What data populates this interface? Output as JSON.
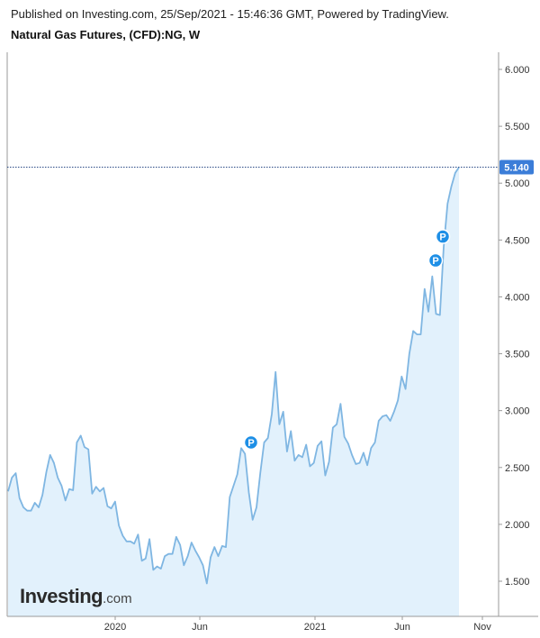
{
  "header": {
    "published": "Published on Investing.com, 25/Sep/2021 - 15:46:36 GMT, Powered by TradingView.",
    "title": "Natural Gas Futures, (CFD):NG, W"
  },
  "logo": {
    "brand": "Investing",
    "suffix": ".com"
  },
  "chart_data": {
    "type": "area",
    "title": "Natural Gas Futures, (CFD):NG, W",
    "xlabel": "",
    "ylabel": "",
    "ylim": [
      1.2,
      6.1
    ],
    "y_axis_position": "right",
    "y_ticks": [
      "6.000",
      "5.500",
      "5.000",
      "4.500",
      "4.000",
      "3.500",
      "3.000",
      "2.500",
      "2.000",
      "1.500"
    ],
    "x_ticks": [
      "2020",
      "Jun",
      "2021",
      "Jun",
      "Nov"
    ],
    "last_value_label": "5.140",
    "grid": false,
    "legend": "none",
    "colors": {
      "line": "#7fb6e2",
      "fill": "#e2f1fc",
      "badge": "#3b7dd8",
      "marker": "#1e8fe6",
      "marker_ring": "#ffffff"
    },
    "markers": [
      {
        "label": "P",
        "value": 2.72
      },
      {
        "label": "P",
        "value": 4.32
      },
      {
        "label": "P",
        "value": 4.53
      }
    ],
    "series": [
      {
        "values": [
          2.29,
          2.41,
          2.45,
          2.23,
          2.15,
          2.12,
          2.12,
          2.19,
          2.15,
          2.26,
          2.46,
          2.61,
          2.54,
          2.41,
          2.34,
          2.21,
          2.31,
          2.3,
          2.72,
          2.78,
          2.68,
          2.66,
          2.27,
          2.33,
          2.29,
          2.32,
          2.16,
          2.14,
          2.2,
          1.99,
          1.9,
          1.85,
          1.85,
          1.83,
          1.91,
          1.68,
          1.7,
          1.87,
          1.6,
          1.63,
          1.61,
          1.72,
          1.74,
          1.74,
          1.89,
          1.82,
          1.64,
          1.72,
          1.84,
          1.77,
          1.71,
          1.64,
          1.48,
          1.71,
          1.8,
          1.72,
          1.81,
          1.8,
          2.24,
          2.34,
          2.44,
          2.67,
          2.62,
          2.28,
          2.04,
          2.15,
          2.45,
          2.72,
          2.76,
          2.97,
          3.34,
          2.88,
          2.99,
          2.64,
          2.82,
          2.56,
          2.61,
          2.59,
          2.7,
          2.51,
          2.54,
          2.69,
          2.73,
          2.43,
          2.55,
          2.85,
          2.88,
          3.06,
          2.77,
          2.71,
          2.61,
          2.53,
          2.54,
          2.63,
          2.52,
          2.67,
          2.72,
          2.91,
          2.95,
          2.96,
          2.91,
          2.99,
          3.09,
          3.3,
          3.19,
          3.5,
          3.7,
          3.67,
          3.67,
          4.07,
          3.87,
          4.18,
          3.85,
          3.84,
          4.44,
          4.82,
          4.97,
          5.09,
          5.14
        ]
      }
    ]
  }
}
